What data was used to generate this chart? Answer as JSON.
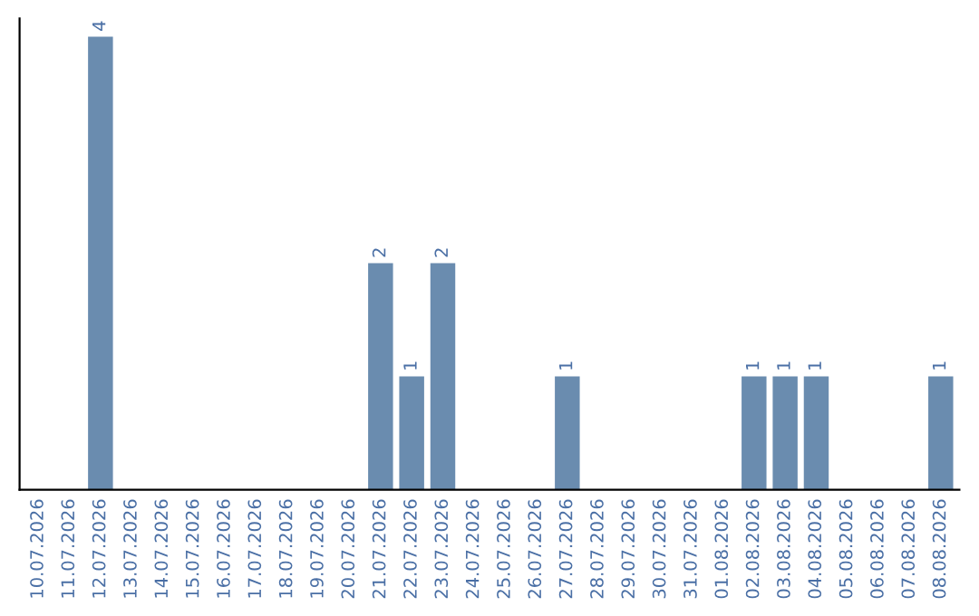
{
  "chart_data": {
    "type": "bar",
    "categories": [
      "10.07.2026",
      "11.07.2026",
      "12.07.2026",
      "13.07.2026",
      "14.07.2026",
      "15.07.2026",
      "16.07.2026",
      "17.07.2026",
      "18.07.2026",
      "19.07.2026",
      "20.07.2026",
      "21.07.2026",
      "22.07.2026",
      "23.07.2026",
      "24.07.2026",
      "25.07.2026",
      "26.07.2026",
      "27.07.2026",
      "28.07.2026",
      "29.07.2026",
      "30.07.2026",
      "31.07.2026",
      "01.08.2026",
      "02.08.2026",
      "03.08.2026",
      "04.08.2026",
      "05.08.2026",
      "06.08.2026",
      "07.08.2026",
      "08.08.2026"
    ],
    "values": [
      0,
      0,
      4,
      0,
      0,
      0,
      0,
      0,
      0,
      0,
      0,
      2,
      1,
      2,
      0,
      0,
      0,
      1,
      0,
      0,
      0,
      0,
      0,
      1,
      1,
      1,
      0,
      0,
      0,
      1
    ],
    "value_labels": [
      null,
      null,
      "4",
      null,
      null,
      null,
      null,
      null,
      null,
      null,
      null,
      "2",
      "1",
      "2",
      null,
      null,
      null,
      "1",
      null,
      null,
      null,
      null,
      null,
      "1",
      "1",
      "1",
      null,
      null,
      null,
      "1"
    ],
    "color": "#6a8caf",
    "tick_labels": "x",
    "grid": false,
    "legend": false
  }
}
